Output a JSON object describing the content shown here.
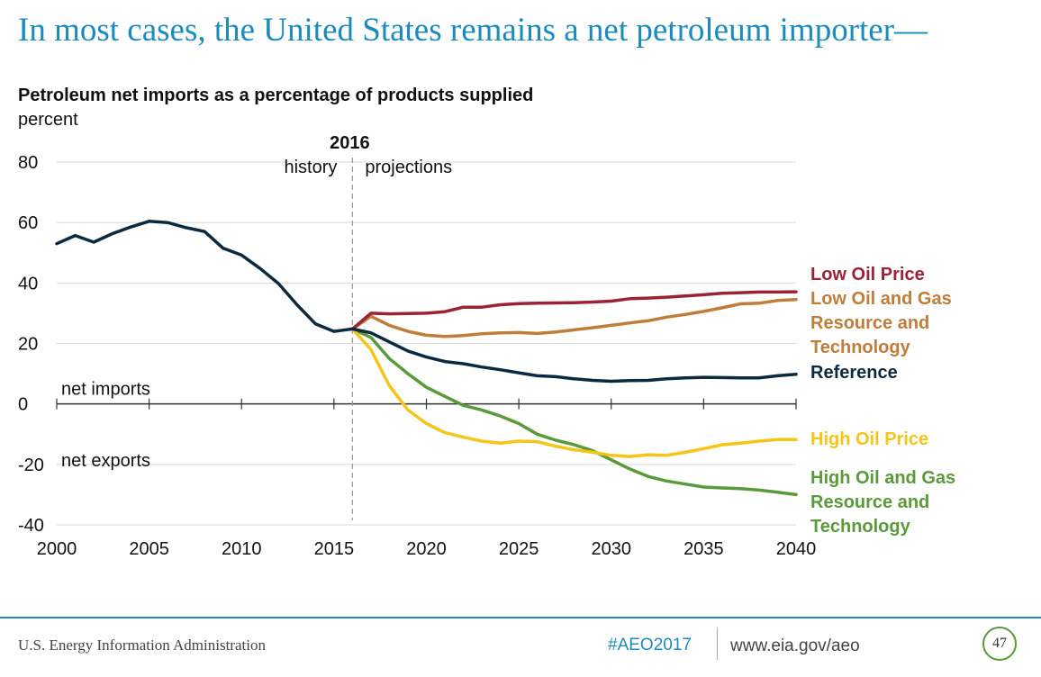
{
  "slide": {
    "title": "In most cases, the United States remains a net petroleum importer—",
    "footer_org": "U.S. Energy Information Administration",
    "hashtag": "#AEO2017",
    "url": "www.eia.gov/aeo",
    "page_number": "47"
  },
  "chart_data": {
    "type": "line",
    "title": "Petroleum net imports as a percentage of products supplied",
    "ylabel": "percent",
    "xlim": [
      2000,
      2040
    ],
    "ylim": [
      -40,
      80
    ],
    "x_ticks": [
      "2000",
      "2005",
      "2010",
      "2015",
      "2020",
      "2025",
      "2030",
      "2035",
      "2040"
    ],
    "y_ticks": [
      "80",
      "60",
      "40",
      "20",
      "0",
      "-20",
      "-40"
    ],
    "grid": true,
    "divider": {
      "x": 2016,
      "label": "2016",
      "left_label": "history",
      "right_label": "projections"
    },
    "zero_labels": {
      "above": "net imports",
      "below": "net exports"
    },
    "series": [
      {
        "name": "Reference",
        "legend_lines": [
          "Reference"
        ],
        "color": "#0b2940",
        "x": [
          2000,
          2001,
          2002,
          2003,
          2004,
          2005,
          2006,
          2007,
          2008,
          2009,
          2010,
          2011,
          2012,
          2013,
          2014,
          2015,
          2016,
          2017,
          2018,
          2019,
          2020,
          2021,
          2022,
          2023,
          2024,
          2025,
          2026,
          2027,
          2028,
          2029,
          2030,
          2031,
          2032,
          2033,
          2034,
          2035,
          2036,
          2037,
          2038,
          2039,
          2040
        ],
        "y": [
          53,
          55.7,
          53.5,
          56.3,
          58.5,
          60.4,
          60,
          58.3,
          57,
          51.5,
          49.2,
          44.8,
          39.8,
          32.8,
          26.5,
          24,
          24.8,
          23.5,
          20.5,
          17.5,
          15.5,
          14,
          13.3,
          12.2,
          11.3,
          10.3,
          9.3,
          9,
          8.3,
          7.8,
          7.5,
          7.7,
          7.8,
          8.3,
          8.6,
          8.8,
          8.7,
          8.6,
          8.6,
          9.3,
          9.8
        ]
      },
      {
        "name": "Low Oil Price",
        "legend_lines": [
          "Low Oil Price"
        ],
        "color": "#9b2335",
        "x": [
          2016,
          2017,
          2018,
          2019,
          2020,
          2021,
          2022,
          2023,
          2024,
          2025,
          2026,
          2027,
          2028,
          2029,
          2030,
          2031,
          2032,
          2033,
          2034,
          2035,
          2036,
          2037,
          2038,
          2039,
          2040
        ],
        "y": [
          24.8,
          30,
          29.8,
          29.9,
          30,
          30.5,
          32,
          32,
          32.8,
          33.2,
          33.3,
          33.4,
          33.5,
          33.7,
          34,
          34.8,
          35,
          35.3,
          35.7,
          36.1,
          36.6,
          36.8,
          37,
          37,
          37.1
        ]
      },
      {
        "name": "Low Oil and Gas Resource and Technology",
        "legend_lines": [
          "Low Oil and Gas",
          "Resource and",
          "Technology"
        ],
        "color": "#c07d3a",
        "x": [
          2016,
          2017,
          2018,
          2019,
          2020,
          2021,
          2022,
          2023,
          2024,
          2025,
          2026,
          2027,
          2028,
          2029,
          2030,
          2031,
          2032,
          2033,
          2034,
          2035,
          2036,
          2037,
          2038,
          2039,
          2040
        ],
        "y": [
          24.8,
          29,
          26,
          24,
          22.7,
          22.3,
          22.6,
          23.2,
          23.5,
          23.6,
          23.3,
          23.8,
          24.5,
          25.2,
          26,
          26.8,
          27.5,
          28.7,
          29.6,
          30.6,
          31.8,
          33.1,
          33.3,
          34.2,
          34.5
        ]
      },
      {
        "name": "High Oil Price",
        "legend_lines": [
          "High Oil Price"
        ],
        "color": "#f5c518",
        "x": [
          2016,
          2017,
          2018,
          2019,
          2020,
          2021,
          2022,
          2023,
          2024,
          2025,
          2026,
          2027,
          2028,
          2029,
          2030,
          2031,
          2032,
          2033,
          2034,
          2035,
          2036,
          2037,
          2038,
          2039,
          2040
        ],
        "y": [
          24.8,
          18,
          6,
          -2,
          -6.5,
          -9.5,
          -11,
          -12.3,
          -13,
          -12.3,
          -12.5,
          -14,
          -15.2,
          -16,
          -17,
          -17.4,
          -16.8,
          -17,
          -16,
          -14.8,
          -13.5,
          -13,
          -12.3,
          -11.8,
          -11.8
        ]
      },
      {
        "name": "High Oil and Gas Resource and Technology",
        "legend_lines": [
          "High Oil and Gas",
          "Resource and",
          "Technology"
        ],
        "color": "#5a9a3a",
        "x": [
          2016,
          2017,
          2018,
          2019,
          2020,
          2021,
          2022,
          2023,
          2024,
          2025,
          2026,
          2027,
          2028,
          2029,
          2030,
          2031,
          2032,
          2033,
          2034,
          2035,
          2036,
          2037,
          2038,
          2039,
          2040
        ],
        "y": [
          24.8,
          22,
          15,
          10,
          5.5,
          2.5,
          -0.5,
          -2,
          -4,
          -6.5,
          -10,
          -12,
          -13.5,
          -15.5,
          -18.5,
          -21.5,
          -24,
          -25.5,
          -26.5,
          -27.5,
          -27.8,
          -28,
          -28.5,
          -29.2,
          -30
        ]
      }
    ]
  }
}
